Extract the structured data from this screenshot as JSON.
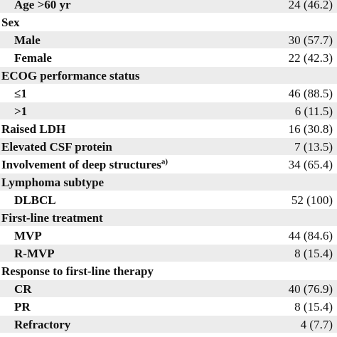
{
  "table": {
    "groups": [
      {
        "items": [
          {
            "label": "Age >60 yr",
            "value": "24 (46.2)"
          }
        ]
      },
      {
        "label": "Sex",
        "items": [
          {
            "label": "Male",
            "value": "30 (57.7)"
          },
          {
            "label": "Female",
            "value": "22 (42.3)"
          }
        ]
      },
      {
        "label": "ECOG performance status",
        "items": [
          {
            "label": "≤1",
            "value": "46 (88.5)"
          },
          {
            "label": ">1",
            "value": "6 (11.5)"
          }
        ]
      },
      {
        "label": "Raised LDH",
        "value": "16 (30.8)"
      },
      {
        "label": "Elevated CSF protein",
        "value": "7 (13.5)"
      },
      {
        "label": "Involvement of deep structures",
        "note": "a)",
        "value": "34 (65.4)"
      },
      {
        "label": "Lymphoma subtype",
        "items": [
          {
            "label": "DLBCL",
            "value": "52 (100)"
          }
        ]
      },
      {
        "label": "First-line treatment",
        "items": [
          {
            "label": "MVP",
            "value": "44 (84.6)"
          },
          {
            "label": "R-MVP",
            "value": "8 (15.4)"
          }
        ]
      },
      {
        "label": "Response to first-line therapy",
        "items": [
          {
            "label": "CR",
            "value": "40 (76.9)"
          },
          {
            "label": "PR",
            "value": "8 (15.4)"
          },
          {
            "label": "Refractory",
            "value": "4 (7.7)"
          }
        ]
      }
    ]
  }
}
